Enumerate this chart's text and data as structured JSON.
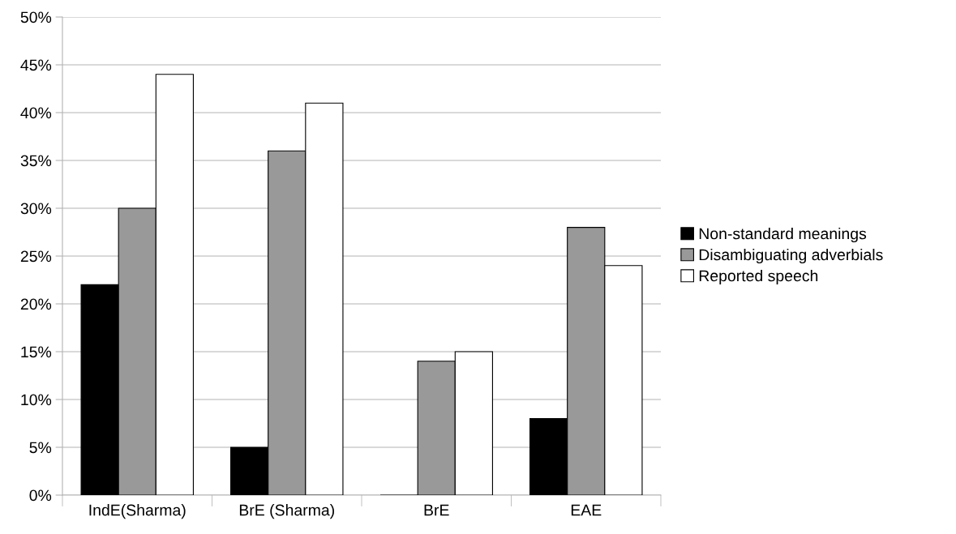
{
  "chart_data": {
    "type": "bar",
    "categories": [
      "IndE(Sharma)",
      "BrE (Sharma)",
      "BrE",
      "EAE"
    ],
    "series": [
      {
        "name": "Non-standard meanings",
        "color": "#000000",
        "values": [
          22,
          5,
          0,
          8
        ]
      },
      {
        "name": "Disambiguating adverbials",
        "color": "#999999",
        "values": [
          30,
          36,
          14,
          28
        ]
      },
      {
        "name": "Reported speech",
        "color": "#ffffff",
        "values": [
          44,
          41,
          15,
          24
        ]
      }
    ],
    "ylim": [
      0,
      50
    ],
    "yticks": [
      {
        "value": 0,
        "label": "0%"
      },
      {
        "value": 5,
        "label": "5%"
      },
      {
        "value": 10,
        "label": "10%"
      },
      {
        "value": 15,
        "label": "15%"
      },
      {
        "value": 20,
        "label": "20%"
      },
      {
        "value": 25,
        "label": "25%"
      },
      {
        "value": 30,
        "label": "30%"
      },
      {
        "value": 35,
        "label": "35%"
      },
      {
        "value": 40,
        "label": "40%"
      },
      {
        "value": 45,
        "label": "45%"
      },
      {
        "value": 50,
        "label": "50%"
      }
    ],
    "grid": "y",
    "legend": "right"
  }
}
